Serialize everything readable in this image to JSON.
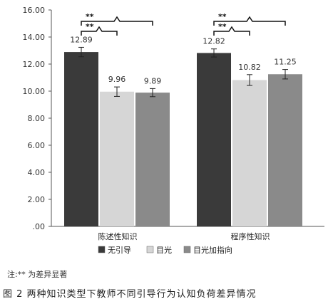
{
  "chart_data": {
    "type": "bar",
    "categories": [
      "陈述性知识",
      "程序性知识"
    ],
    "series": [
      {
        "name": "无引导",
        "color": "#3a3a3a",
        "values": [
          12.89,
          12.82
        ],
        "errors": [
          0.35,
          0.3
        ]
      },
      {
        "name": "目光",
        "color": "#d6d6d6",
        "values": [
          9.96,
          10.82
        ],
        "errors": [
          0.35,
          0.4
        ]
      },
      {
        "name": "目光加指向",
        "color": "#8a8a8a",
        "values": [
          9.89,
          11.25
        ],
        "errors": [
          0.3,
          0.35
        ]
      }
    ],
    "data_labels": [
      [
        "12.89",
        "12.82"
      ],
      [
        "9.96",
        "10.82"
      ],
      [
        "9.89",
        "11.25"
      ]
    ],
    "ylim": [
      0,
      16
    ],
    "yticks": [
      "16.00",
      "14.00",
      "12.00",
      "10.00",
      "8.00",
      "6.00",
      "4.00",
      "2.00",
      ".00"
    ],
    "ytick_values": [
      16,
      14,
      12,
      10,
      8,
      6,
      4,
      2,
      0
    ],
    "significance": [
      {
        "label": "**",
        "category": 0,
        "from_series": 0,
        "to_series": 1
      },
      {
        "label": "**",
        "category": 0,
        "from_series": 0,
        "to_series": 2
      },
      {
        "label": "**",
        "category": 1,
        "from_series": 0,
        "to_series": 1
      },
      {
        "label": "**",
        "category": 1,
        "from_series": 0,
        "to_series": 2
      }
    ],
    "legend_position": "bottom",
    "grid": false
  },
  "note": "注:** 为差异显著",
  "caption": "图 2   两种知识类型下教师不同引导行为认知负荷差异情况"
}
